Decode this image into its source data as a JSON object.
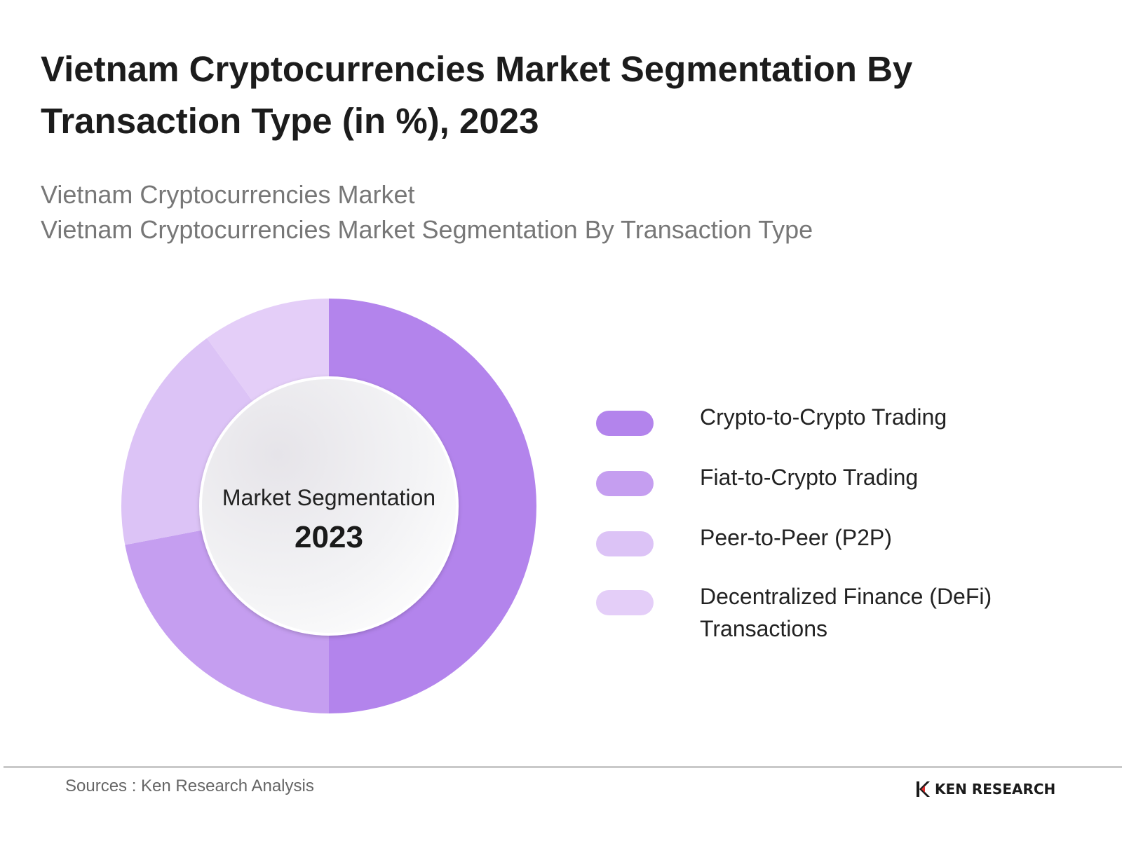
{
  "title": "Vietnam Cryptocurrencies Market Segmentation By Transaction Type (in %), 2023",
  "subtitle_lines": [
    "Vietnam Cryptocurrencies Market",
    "Vietnam Cryptocurrencies Market Segmentation By Transaction Type"
  ],
  "chart_data": {
    "type": "pie",
    "style": "donut",
    "title": "Vietnam Cryptocurrencies Market Segmentation By Transaction Type (in %), 2023",
    "center_label": "Market Segmentation",
    "center_value": "2023",
    "categories": [
      "Crypto-to-Crypto Trading",
      "Fiat-to-Crypto Trading",
      "Peer-to-Peer (P2P)",
      "Decentralized Finance (DeFi) Transactions"
    ],
    "values": [
      50,
      22,
      18,
      10
    ],
    "colors": [
      "#b384ec",
      "#c59ef0",
      "#dcc3f6",
      "#e4cef8"
    ],
    "legend_position": "right"
  },
  "legend": [
    {
      "label": "Crypto-to-Crypto Trading",
      "color": "#b384ec"
    },
    {
      "label": "Fiat-to-Crypto Trading",
      "color": "#c59ef0"
    },
    {
      "label": "Peer-to-Peer (P2P)",
      "color": "#dcc3f6"
    },
    {
      "label": "Decentralized Finance (DeFi) Transactions",
      "color": "#e4cef8"
    }
  ],
  "footer": {
    "source": "Sources : Ken Research Analysis",
    "logo_text": "KEN RESEARCH",
    "logo_icon": "ken-research-k-logo-icon"
  }
}
